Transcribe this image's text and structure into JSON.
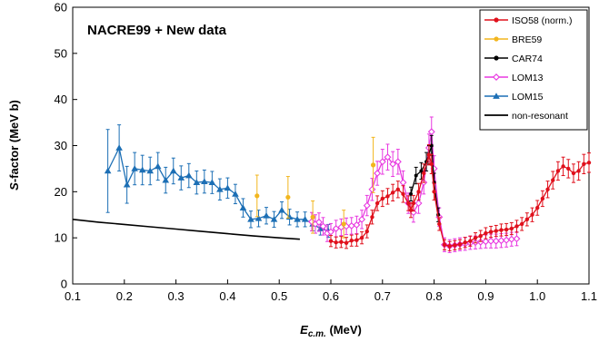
{
  "chart_data": {
    "type": "scatter",
    "title": "NACRE99 + New data",
    "xlabel_main": "E",
    "xlabel_sub": "c.m.",
    "xlabel_unit": " (MeV)",
    "ylabel_main": "S",
    "ylabel_rest": "-factor (MeV b)",
    "xlim": [
      0.1,
      1.1
    ],
    "ylim": [
      0,
      60
    ],
    "x_ticks": [
      "0.1",
      "0.2",
      "0.3",
      "0.4",
      "0.5",
      "0.6",
      "0.7",
      "0.8",
      "0.9",
      "1.0",
      "1.1"
    ],
    "y_ticks": [
      "0",
      "10",
      "20",
      "30",
      "40",
      "50",
      "60"
    ],
    "grid": false,
    "legend_position": "top-right",
    "series": [
      {
        "name": "ISO58 (norm.)",
        "color": "#e0101c",
        "marker": "circle",
        "points": [
          [
            0.6,
            9.3,
            1.2
          ],
          [
            0.61,
            9.0,
            1.2
          ],
          [
            0.62,
            9.1,
            1.2
          ],
          [
            0.63,
            8.9,
            1.2
          ],
          [
            0.64,
            9.4,
            1.2
          ],
          [
            0.65,
            9.5,
            1.3
          ],
          [
            0.66,
            10.0,
            1.3
          ],
          [
            0.67,
            11.4,
            1.4
          ],
          [
            0.68,
            14.5,
            1.5
          ],
          [
            0.69,
            17.5,
            1.6
          ],
          [
            0.7,
            18.5,
            1.7
          ],
          [
            0.71,
            19.0,
            1.7
          ],
          [
            0.72,
            19.8,
            1.8
          ],
          [
            0.73,
            20.5,
            1.8
          ],
          [
            0.74,
            19.5,
            1.8
          ],
          [
            0.75,
            17.5,
            1.6
          ],
          [
            0.755,
            16.0,
            1.6
          ],
          [
            0.76,
            17.5,
            1.7
          ],
          [
            0.77,
            20.0,
            1.8
          ],
          [
            0.78,
            24.0,
            2.0
          ],
          [
            0.79,
            28.0,
            2.2
          ],
          [
            0.795,
            26.0,
            2.1
          ],
          [
            0.8,
            20.0,
            1.8
          ],
          [
            0.81,
            13.0,
            1.4
          ],
          [
            0.82,
            8.5,
            1.1
          ],
          [
            0.83,
            8.2,
            1.0
          ],
          [
            0.84,
            8.4,
            1.0
          ],
          [
            0.85,
            8.6,
            1.0
          ],
          [
            0.86,
            9.0,
            1.1
          ],
          [
            0.87,
            9.3,
            1.1
          ],
          [
            0.88,
            10.0,
            1.1
          ],
          [
            0.89,
            10.4,
            1.2
          ],
          [
            0.9,
            11.0,
            1.2
          ],
          [
            0.91,
            11.3,
            1.2
          ],
          [
            0.92,
            11.5,
            1.2
          ],
          [
            0.93,
            11.7,
            1.3
          ],
          [
            0.94,
            11.8,
            1.3
          ],
          [
            0.95,
            12.0,
            1.3
          ],
          [
            0.96,
            12.5,
            1.3
          ],
          [
            0.97,
            13.0,
            1.4
          ],
          [
            0.98,
            14.0,
            1.4
          ],
          [
            0.99,
            15.0,
            1.5
          ],
          [
            1.0,
            16.5,
            1.6
          ],
          [
            1.01,
            18.5,
            1.7
          ],
          [
            1.02,
            20.5,
            1.8
          ],
          [
            1.03,
            22.5,
            1.9
          ],
          [
            1.04,
            24.5,
            2.0
          ],
          [
            1.05,
            25.5,
            2.0
          ],
          [
            1.06,
            25.0,
            2.0
          ],
          [
            1.07,
            24.0,
            2.0
          ],
          [
            1.08,
            24.5,
            2.0
          ],
          [
            1.09,
            26.0,
            2.1
          ],
          [
            1.1,
            26.3,
            2.1
          ]
        ]
      },
      {
        "name": "BRE59",
        "color": "#f2b61e",
        "marker": "circle",
        "points": [
          [
            0.457,
            19.1,
            4.5
          ],
          [
            0.517,
            18.8,
            4.5
          ],
          [
            0.565,
            14.5,
            3.5
          ],
          [
            0.625,
            13.0,
            3.0
          ],
          [
            0.682,
            25.8,
            6.0
          ]
        ]
      },
      {
        "name": "CAR74",
        "color": "#000000",
        "marker": "circle",
        "points": [
          [
            0.755,
            19.5,
            1.5
          ],
          [
            0.765,
            23.5,
            1.8
          ],
          [
            0.775,
            24.5,
            1.8
          ],
          [
            0.785,
            26.5,
            2.0
          ],
          [
            0.79,
            28.0,
            2.0
          ],
          [
            0.795,
            30.0,
            2.2
          ],
          [
            0.8,
            22.0,
            2.0
          ],
          [
            0.808,
            15.0,
            1.5
          ]
        ]
      },
      {
        "name": "LOM13",
        "color": "#e838e0",
        "marker": "diamond",
        "points": [
          [
            0.563,
            13.5,
            2.0
          ],
          [
            0.57,
            13.0,
            2.0
          ],
          [
            0.577,
            13.4,
            2.0
          ],
          [
            0.585,
            12.5,
            1.9
          ],
          [
            0.593,
            11.0,
            1.8
          ],
          [
            0.6,
            11.3,
            1.8
          ],
          [
            0.61,
            12.0,
            1.8
          ],
          [
            0.62,
            12.3,
            1.8
          ],
          [
            0.63,
            12.5,
            1.8
          ],
          [
            0.64,
            12.6,
            1.8
          ],
          [
            0.65,
            12.8,
            1.9
          ],
          [
            0.66,
            14.0,
            2.0
          ],
          [
            0.67,
            17.0,
            2.2
          ],
          [
            0.68,
            20.5,
            2.4
          ],
          [
            0.69,
            24.0,
            2.6
          ],
          [
            0.7,
            26.5,
            2.7
          ],
          [
            0.71,
            27.5,
            2.8
          ],
          [
            0.72,
            26.0,
            2.7
          ],
          [
            0.73,
            26.5,
            2.7
          ],
          [
            0.74,
            22.0,
            2.5
          ],
          [
            0.75,
            17.5,
            2.2
          ],
          [
            0.76,
            15.5,
            2.1
          ],
          [
            0.77,
            17.5,
            2.2
          ],
          [
            0.78,
            22.0,
            2.5
          ],
          [
            0.79,
            29.5,
            3.0
          ],
          [
            0.795,
            33.0,
            3.2
          ],
          [
            0.8,
            25.0,
            2.8
          ],
          [
            0.81,
            14.5,
            2.0
          ],
          [
            0.82,
            8.5,
            1.5
          ],
          [
            0.83,
            8.2,
            1.4
          ],
          [
            0.84,
            8.4,
            1.4
          ],
          [
            0.85,
            8.6,
            1.4
          ],
          [
            0.86,
            8.7,
            1.4
          ],
          [
            0.87,
            8.9,
            1.4
          ],
          [
            0.88,
            9.0,
            1.4
          ],
          [
            0.89,
            9.1,
            1.4
          ],
          [
            0.9,
            9.2,
            1.4
          ],
          [
            0.91,
            9.3,
            1.5
          ],
          [
            0.92,
            9.3,
            1.5
          ],
          [
            0.93,
            9.4,
            1.5
          ],
          [
            0.94,
            9.5,
            1.5
          ],
          [
            0.95,
            9.7,
            1.5
          ],
          [
            0.96,
            9.8,
            1.5
          ]
        ]
      },
      {
        "name": "LOM15",
        "color": "#1c6fb5",
        "marker": "triangle",
        "points": [
          [
            0.168,
            24.5,
            9.0
          ],
          [
            0.19,
            29.5,
            5.0
          ],
          [
            0.205,
            21.5,
            4.0
          ],
          [
            0.22,
            25.0,
            3.5
          ],
          [
            0.235,
            24.7,
            3.2
          ],
          [
            0.25,
            24.5,
            3.0
          ],
          [
            0.265,
            25.5,
            3.0
          ],
          [
            0.28,
            22.5,
            2.8
          ],
          [
            0.295,
            24.5,
            2.8
          ],
          [
            0.31,
            23.0,
            2.6
          ],
          [
            0.325,
            23.5,
            2.6
          ],
          [
            0.34,
            22.0,
            2.5
          ],
          [
            0.355,
            22.2,
            2.5
          ],
          [
            0.37,
            22.0,
            2.4
          ],
          [
            0.385,
            20.5,
            2.3
          ],
          [
            0.4,
            20.8,
            2.2
          ],
          [
            0.415,
            19.5,
            2.1
          ],
          [
            0.43,
            16.5,
            2.0
          ],
          [
            0.445,
            14.0,
            1.8
          ],
          [
            0.46,
            14.2,
            1.8
          ],
          [
            0.475,
            14.8,
            1.8
          ],
          [
            0.49,
            14.0,
            1.7
          ],
          [
            0.505,
            16.0,
            1.8
          ],
          [
            0.52,
            14.5,
            1.7
          ],
          [
            0.535,
            14.0,
            1.6
          ],
          [
            0.55,
            14.0,
            1.6
          ],
          [
            0.565,
            13.0,
            1.5
          ],
          [
            0.58,
            12.0,
            1.4
          ],
          [
            0.595,
            11.5,
            1.4
          ]
        ]
      },
      {
        "name": "non-resonant",
        "color": "#000000",
        "marker": "line",
        "points": [
          [
            0.1,
            14.0
          ],
          [
            0.15,
            13.4
          ],
          [
            0.2,
            12.9
          ],
          [
            0.25,
            12.4
          ],
          [
            0.3,
            11.9
          ],
          [
            0.35,
            11.4
          ],
          [
            0.4,
            10.9
          ],
          [
            0.45,
            10.4
          ],
          [
            0.5,
            10.0
          ],
          [
            0.54,
            9.7
          ]
        ]
      }
    ]
  }
}
